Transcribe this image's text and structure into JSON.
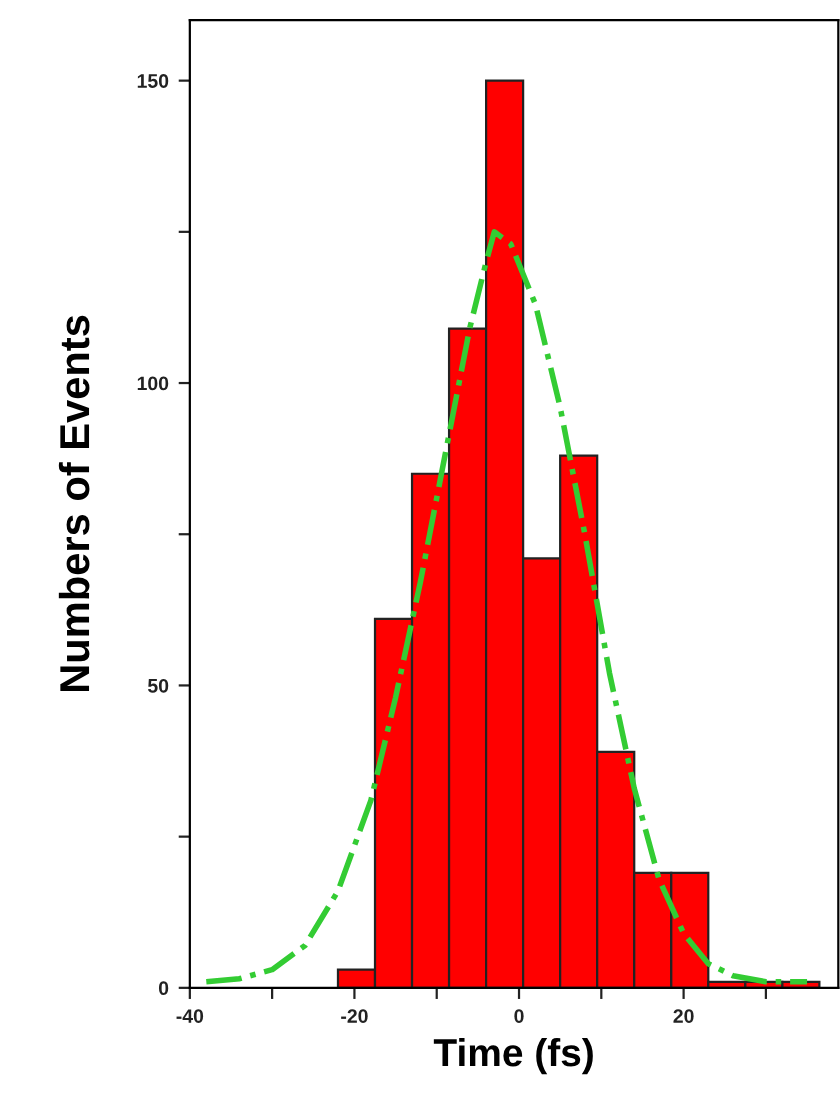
{
  "chart_data": {
    "type": "histogram",
    "xlabel": "Time (fs)",
    "ylabel": "Numbers of Events",
    "bins": [
      -22,
      -17.5,
      -13,
      -8.5,
      -4,
      0.5,
      5,
      9.5,
      14,
      18.5,
      23,
      27.5,
      32,
      36.5
    ],
    "values": [
      3,
      61,
      85,
      109,
      150,
      71,
      88,
      39,
      19,
      19,
      1,
      1,
      1
    ],
    "color": "#ff0000",
    "series": [
      {
        "type": "line",
        "color": "#33cc33",
        "line_style": "dashdot",
        "x": [
          -38,
          -34,
          -30,
          -26,
          -22,
          -18,
          -15,
          -12,
          -9,
          -6,
          -4,
          -3,
          -1,
          2,
          5,
          8,
          11,
          14,
          17,
          20,
          23,
          26,
          30,
          35
        ],
        "values": [
          1,
          1.5,
          3,
          7,
          16,
          31,
          48,
          67,
          88,
          109,
          120,
          125,
          123,
          113,
          96,
          75,
          52,
          33,
          18,
          9,
          4,
          2,
          1,
          1
        ]
      }
    ],
    "xlim": [
      -40,
      38.8
    ],
    "ylim": [
      0,
      160
    ],
    "xticks": [
      -40,
      {
        "value": -30,
        "label": null
      },
      -20,
      {
        "value": -10,
        "label": null
      },
      0,
      {
        "value": 10,
        "label": null
      },
      20,
      {
        "value": 30,
        "label": null
      }
    ],
    "yticks": [
      0,
      {
        "value": 25,
        "label": null
      },
      50,
      {
        "value": 75,
        "label": null
      },
      100,
      {
        "value": 125,
        "label": null
      },
      150
    ],
    "grid": false,
    "legend": false
  }
}
